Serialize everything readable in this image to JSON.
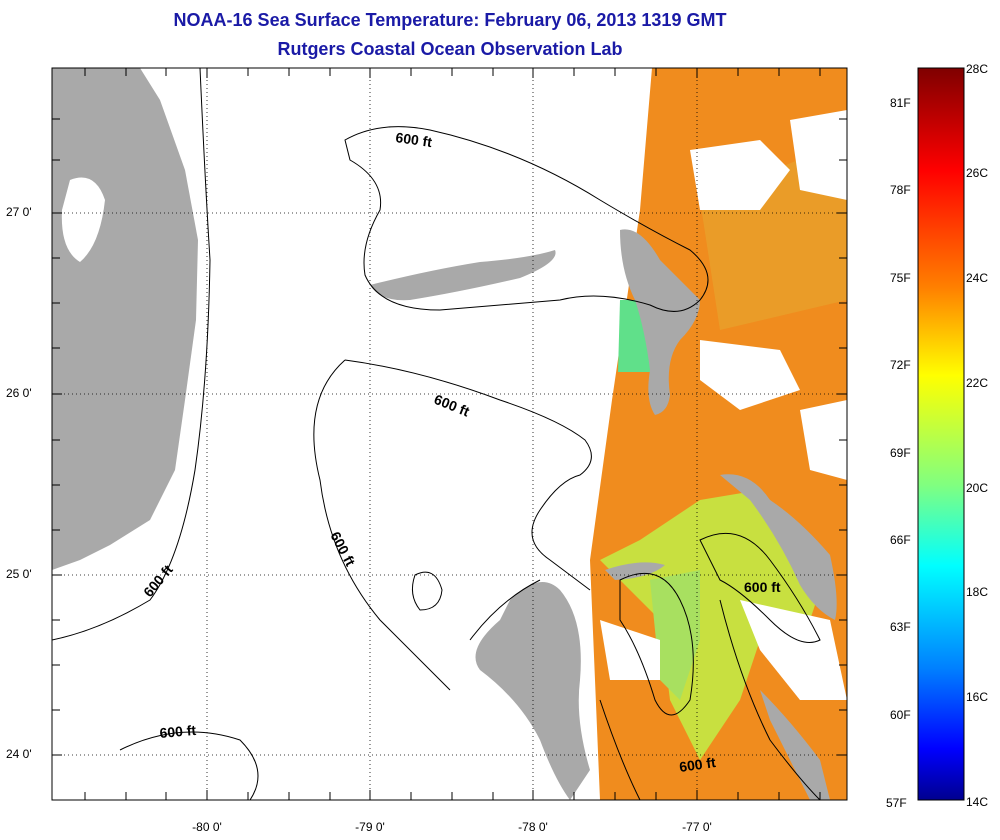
{
  "title": "NOAA-16 Sea Surface Temperature:  February 06, 2013 1319 GMT",
  "subtitle": "Rutgers Coastal Ocean Observation Lab",
  "map": {
    "lat_ticks": [
      "27 0'",
      "26 0'",
      "25 0'",
      "24 0'"
    ],
    "lon_ticks": [
      "-80 0'",
      "-79 0'",
      "-78 0'",
      "-77 0'"
    ],
    "contour_label": "600 ft",
    "colors": {
      "land": "#a9a9a9",
      "cloud": "#ffffff",
      "contour": "#000000",
      "grid": "#000000"
    }
  },
  "colorbar": {
    "fahrenheit": [
      "81F",
      "78F",
      "75F",
      "72F",
      "69F",
      "66F",
      "63F",
      "60F",
      "57F"
    ],
    "celsius": [
      "28C",
      "26C",
      "24C",
      "22C",
      "20C",
      "18C",
      "16C",
      "14C"
    ],
    "colors": [
      "#7f0000",
      "#ff0000",
      "#ff8000",
      "#ffff00",
      "#80ff80",
      "#00ffff",
      "#0080ff",
      "#0000ff",
      "#00008f"
    ]
  }
}
